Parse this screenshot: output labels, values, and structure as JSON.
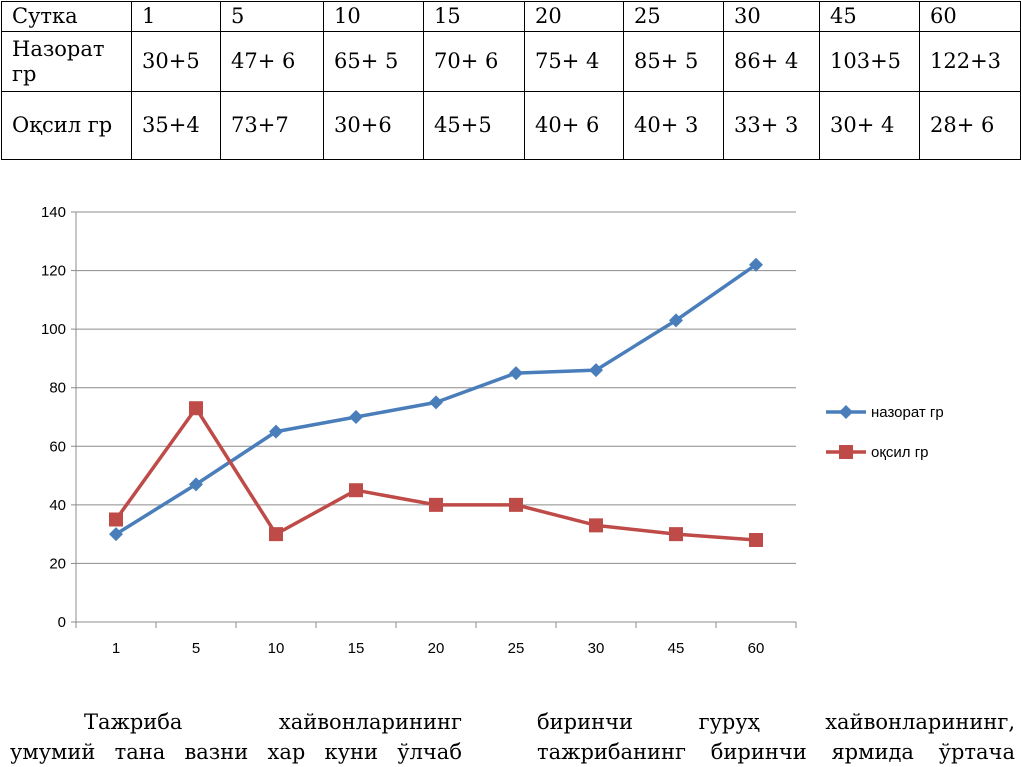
{
  "table": {
    "rows": [
      {
        "label": "Сутка",
        "cells": [
          "1",
          "5",
          "10",
          "15",
          "20",
          "25",
          "30",
          "45",
          "60"
        ]
      },
      {
        "label": "Назорат гр",
        "cells": [
          "30+5",
          "47+ 6",
          "65+ 5",
          "70+ 6",
          "75+ 4",
          "85+ 5",
          "86+ 4",
          "103+5",
          "122+3"
        ]
      },
      {
        "label": "Оқсил гр",
        "cells": [
          "35+4",
          "73+7",
          "30+6",
          "45+5",
          "40+ 6",
          "40+ 3",
          "33+ 3",
          "30+ 4",
          "28+ 6"
        ]
      }
    ]
  },
  "chart_data": {
    "type": "line",
    "categories": [
      "1",
      "5",
      "10",
      "15",
      "20",
      "25",
      "30",
      "45",
      "60"
    ],
    "series": [
      {
        "name": "назорат гр",
        "color": "#4a7ebb",
        "marker": "diamond",
        "values": [
          30,
          47,
          65,
          70,
          75,
          85,
          86,
          103,
          122
        ]
      },
      {
        "name": "оқсил гр",
        "color": "#be4b48",
        "marker": "square",
        "values": [
          35,
          73,
          30,
          45,
          40,
          40,
          33,
          30,
          28
        ]
      }
    ],
    "ylim": [
      0,
      140
    ],
    "yticks": [
      0,
      20,
      40,
      60,
      80,
      100,
      120,
      140
    ],
    "grid": true,
    "legend": "right"
  },
  "text": {
    "left_col": [
      [
        "Тажриба",
        "хайвонларининг"
      ],
      [
        "умумий",
        "тана",
        "вазни",
        "хар",
        "куни",
        "ўлчаб"
      ]
    ],
    "right_col": [
      [
        "биринчи",
        "гуруҳ",
        "хайвонларининг,"
      ],
      [
        "тажрибанинг",
        "биринчи",
        "ярмида",
        "ўртача"
      ]
    ]
  }
}
